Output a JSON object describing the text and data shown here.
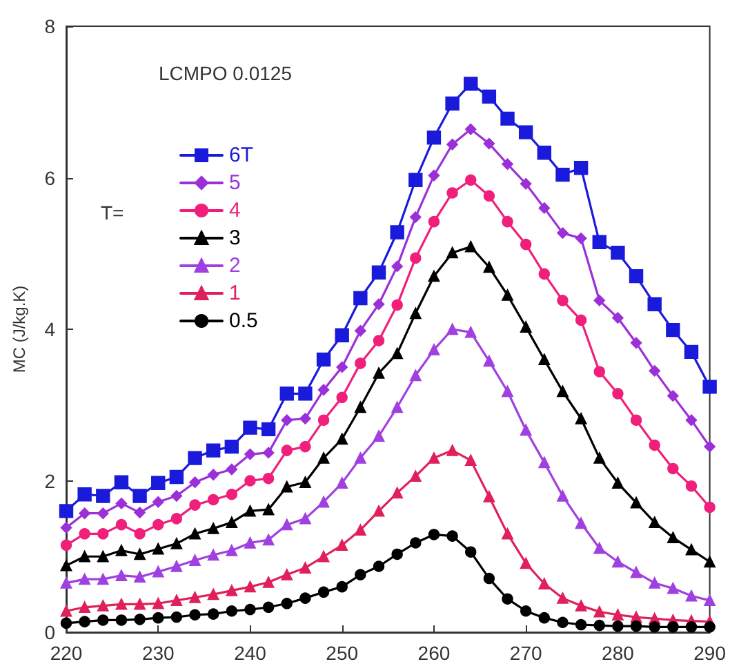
{
  "chart_data": {
    "type": "line",
    "ylabel": "MC (J/kg.K)",
    "legend_title": "T=",
    "annotations": [
      "LCMPO 0.0125"
    ],
    "x": [
      220,
      222,
      224,
      226,
      228,
      230,
      232,
      234,
      236,
      238,
      240,
      242,
      244,
      246,
      248,
      250,
      252,
      254,
      256,
      258,
      260,
      262,
      264,
      266,
      268,
      270,
      272,
      274,
      276,
      278,
      280,
      282,
      284,
      286,
      288,
      290
    ],
    "xlim": [
      220,
      290
    ],
    "xticks": [
      220,
      230,
      240,
      250,
      260,
      270,
      280,
      290
    ],
    "ylim": [
      0,
      8
    ],
    "yticks": [
      0,
      2,
      4,
      6,
      8
    ],
    "grid": false,
    "legend": "top left",
    "line_style": "solid",
    "series": [
      {
        "name": "6T",
        "color": "#1a1adb",
        "marker": "square",
        "values": [
          1.6,
          1.82,
          1.8,
          1.98,
          1.8,
          1.97,
          2.05,
          2.3,
          2.4,
          2.45,
          2.7,
          2.68,
          3.15,
          3.15,
          3.6,
          3.92,
          4.41,
          4.75,
          5.28,
          5.97,
          6.53,
          6.98,
          7.24,
          7.07,
          6.78,
          6.6,
          6.33,
          6.04,
          6.13,
          5.15,
          5.01,
          4.7,
          4.33,
          3.99,
          3.7,
          3.24
        ]
      },
      {
        "name": "5",
        "color": "#9b30d9",
        "marker": "diamond",
        "values": [
          1.38,
          1.57,
          1.57,
          1.7,
          1.58,
          1.72,
          1.8,
          1.98,
          2.08,
          2.15,
          2.35,
          2.37,
          2.8,
          2.82,
          3.2,
          3.5,
          3.98,
          4.33,
          4.83,
          5.48,
          6.03,
          6.44,
          6.64,
          6.45,
          6.18,
          5.92,
          5.6,
          5.27,
          5.2,
          4.38,
          4.15,
          3.82,
          3.45,
          3.12,
          2.8,
          2.45
        ]
      },
      {
        "name": "4",
        "color": "#f0207a",
        "marker": "circle",
        "values": [
          1.15,
          1.3,
          1.3,
          1.42,
          1.3,
          1.42,
          1.5,
          1.68,
          1.75,
          1.82,
          2.0,
          2.03,
          2.4,
          2.45,
          2.8,
          3.1,
          3.55,
          3.85,
          4.32,
          4.94,
          5.42,
          5.8,
          5.97,
          5.76,
          5.42,
          5.12,
          4.73,
          4.38,
          4.12,
          3.44,
          3.15,
          2.8,
          2.47,
          2.16,
          1.93,
          1.65
        ]
      },
      {
        "name": "3",
        "color": "#000000",
        "marker": "triangle",
        "values": [
          0.88,
          1.0,
          1.0,
          1.08,
          1.03,
          1.1,
          1.17,
          1.3,
          1.37,
          1.45,
          1.6,
          1.62,
          1.92,
          1.98,
          2.3,
          2.55,
          2.97,
          3.42,
          3.68,
          4.21,
          4.7,
          5.01,
          5.09,
          4.82,
          4.45,
          4.03,
          3.6,
          3.18,
          2.82,
          2.3,
          1.97,
          1.71,
          1.45,
          1.25,
          1.09,
          0.93
        ]
      },
      {
        "name": "2",
        "color": "#a040e0",
        "marker": "triangle",
        "values": [
          0.65,
          0.7,
          0.7,
          0.75,
          0.73,
          0.8,
          0.87,
          0.95,
          1.02,
          1.08,
          1.18,
          1.22,
          1.42,
          1.5,
          1.72,
          1.97,
          2.3,
          2.59,
          2.97,
          3.39,
          3.73,
          4.0,
          3.96,
          3.58,
          3.18,
          2.67,
          2.24,
          1.8,
          1.44,
          1.11,
          0.93,
          0.79,
          0.65,
          0.58,
          0.48,
          0.42
        ]
      },
      {
        "name": "1",
        "color": "#e0205a",
        "marker": "triangle",
        "values": [
          0.28,
          0.33,
          0.35,
          0.37,
          0.37,
          0.38,
          0.42,
          0.46,
          0.5,
          0.55,
          0.6,
          0.66,
          0.76,
          0.85,
          1.0,
          1.15,
          1.35,
          1.6,
          1.84,
          2.06,
          2.3,
          2.4,
          2.27,
          1.79,
          1.3,
          0.91,
          0.64,
          0.45,
          0.35,
          0.27,
          0.23,
          0.2,
          0.18,
          0.16,
          0.15,
          0.14
        ]
      },
      {
        "name": "0.5",
        "color": "#000000",
        "marker": "circle",
        "values": [
          0.12,
          0.14,
          0.16,
          0.16,
          0.17,
          0.19,
          0.2,
          0.23,
          0.24,
          0.28,
          0.3,
          0.33,
          0.38,
          0.45,
          0.53,
          0.6,
          0.76,
          0.87,
          1.03,
          1.18,
          1.29,
          1.27,
          1.06,
          0.71,
          0.44,
          0.28,
          0.19,
          0.13,
          0.1,
          0.09,
          0.08,
          0.08,
          0.07,
          0.07,
          0.07,
          0.07
        ]
      }
    ]
  }
}
